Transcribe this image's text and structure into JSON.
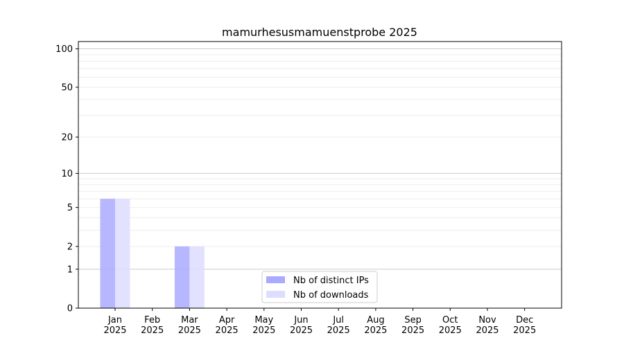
{
  "chart_data": {
    "type": "bar",
    "title": "mamurhesusmamuenstprobe 2025",
    "xlabel": "",
    "ylabel": "",
    "yscale": "log(1+y)",
    "ylim": [
      0,
      114
    ],
    "yticks": [
      0,
      1,
      2,
      5,
      10,
      20,
      50,
      100
    ],
    "grid": true,
    "legend_position": "lower center",
    "categories": [
      "Jan\n2025",
      "Feb\n2025",
      "Mar\n2025",
      "Apr\n2025",
      "May\n2025",
      "Jun\n2025",
      "Jul\n2025",
      "Aug\n2025",
      "Sep\n2025",
      "Oct\n2025",
      "Nov\n2025",
      "Dec\n2025"
    ],
    "series": [
      {
        "name": "Nb of distinct IPs",
        "color": "#aaaaff",
        "values": [
          6,
          0,
          2,
          0,
          0,
          0,
          0,
          0,
          0,
          0,
          0,
          0
        ]
      },
      {
        "name": "Nb of downloads",
        "color": "#ddddff",
        "values": [
          6,
          0,
          2,
          0,
          0,
          0,
          0,
          0,
          0,
          0,
          0,
          0
        ]
      }
    ]
  }
}
